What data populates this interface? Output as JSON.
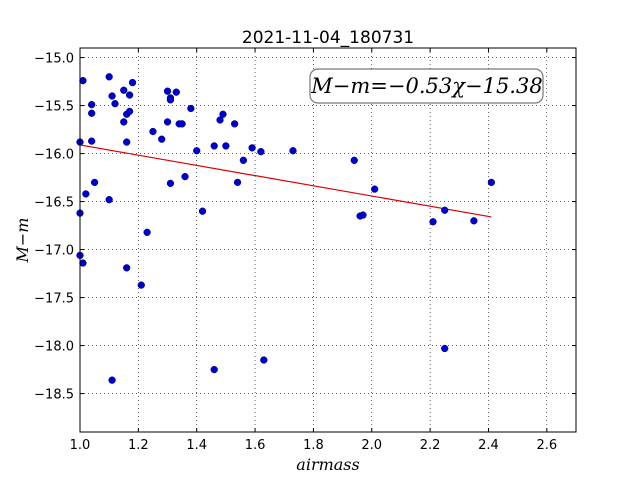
{
  "chart_data": {
    "type": "scatter",
    "title": "2021-11-04_180731",
    "xlabel": "airmass",
    "ylabel": "M−m",
    "xlim": [
      1.0,
      2.7
    ],
    "ylim": [
      -18.9,
      -14.9
    ],
    "x_ticks": [
      1.0,
      1.2,
      1.4,
      1.6,
      1.8,
      2.0,
      2.2,
      2.4,
      2.6
    ],
    "x_tick_labels": [
      "1.0",
      "1.2",
      "1.4",
      "1.6",
      "1.8",
      "2.0",
      "2.2",
      "2.4",
      "2.6"
    ],
    "y_ticks": [
      -15.0,
      -15.5,
      -16.0,
      -16.5,
      -17.0,
      -17.5,
      -18.0,
      -18.5
    ],
    "y_tick_labels": [
      "−15.0",
      "−15.5",
      "−16.0",
      "−16.5",
      "−17.0",
      "−17.5",
      "−18.0",
      "−18.5"
    ],
    "grid": true,
    "points_color": "#0000cc",
    "fit_color": "#dd0000",
    "annotation": "M−m=−0.53χ−15.38",
    "fit_line": {
      "x": [
        1.0,
        2.41
      ],
      "y": [
        -15.91,
        -16.66
      ]
    },
    "points": [
      {
        "x": 1.0,
        "y": -15.88
      },
      {
        "x": 1.0,
        "y": -16.62
      },
      {
        "x": 1.0,
        "y": -17.06
      },
      {
        "x": 1.01,
        "y": -15.24
      },
      {
        "x": 1.01,
        "y": -17.14
      },
      {
        "x": 1.02,
        "y": -16.42
      },
      {
        "x": 1.04,
        "y": -15.49
      },
      {
        "x": 1.04,
        "y": -15.58
      },
      {
        "x": 1.04,
        "y": -15.87
      },
      {
        "x": 1.05,
        "y": -16.3
      },
      {
        "x": 1.1,
        "y": -15.2
      },
      {
        "x": 1.1,
        "y": -16.48
      },
      {
        "x": 1.11,
        "y": -15.4
      },
      {
        "x": 1.11,
        "y": -18.36
      },
      {
        "x": 1.12,
        "y": -15.48
      },
      {
        "x": 1.15,
        "y": -15.67
      },
      {
        "x": 1.15,
        "y": -15.34
      },
      {
        "x": 1.16,
        "y": -15.59
      },
      {
        "x": 1.16,
        "y": -15.88
      },
      {
        "x": 1.16,
        "y": -17.19
      },
      {
        "x": 1.17,
        "y": -15.56
      },
      {
        "x": 1.17,
        "y": -15.39
      },
      {
        "x": 1.18,
        "y": -15.26
      },
      {
        "x": 1.21,
        "y": -17.37
      },
      {
        "x": 1.23,
        "y": -16.82
      },
      {
        "x": 1.25,
        "y": -15.77
      },
      {
        "x": 1.28,
        "y": -15.85
      },
      {
        "x": 1.3,
        "y": -15.35
      },
      {
        "x": 1.3,
        "y": -15.67
      },
      {
        "x": 1.31,
        "y": -15.42
      },
      {
        "x": 1.31,
        "y": -15.44
      },
      {
        "x": 1.31,
        "y": -16.31
      },
      {
        "x": 1.33,
        "y": -15.36
      },
      {
        "x": 1.34,
        "y": -15.69
      },
      {
        "x": 1.35,
        "y": -15.69
      },
      {
        "x": 1.36,
        "y": -16.24
      },
      {
        "x": 1.38,
        "y": -15.53
      },
      {
        "x": 1.4,
        "y": -15.97
      },
      {
        "x": 1.42,
        "y": -16.6
      },
      {
        "x": 1.46,
        "y": -15.92
      },
      {
        "x": 1.46,
        "y": -18.25
      },
      {
        "x": 1.48,
        "y": -15.65
      },
      {
        "x": 1.49,
        "y": -15.59
      },
      {
        "x": 1.5,
        "y": -15.92
      },
      {
        "x": 1.53,
        "y": -15.69
      },
      {
        "x": 1.54,
        "y": -16.3
      },
      {
        "x": 1.56,
        "y": -16.07
      },
      {
        "x": 1.59,
        "y": -15.94
      },
      {
        "x": 1.62,
        "y": -15.98
      },
      {
        "x": 1.63,
        "y": -18.15
      },
      {
        "x": 1.73,
        "y": -15.97
      },
      {
        "x": 1.94,
        "y": -16.07
      },
      {
        "x": 1.96,
        "y": -16.65
      },
      {
        "x": 1.97,
        "y": -16.64
      },
      {
        "x": 2.01,
        "y": -16.37
      },
      {
        "x": 2.21,
        "y": -16.71
      },
      {
        "x": 2.25,
        "y": -16.59
      },
      {
        "x": 2.25,
        "y": -18.03
      },
      {
        "x": 2.35,
        "y": -16.7
      },
      {
        "x": 2.41,
        "y": -16.3
      }
    ]
  }
}
